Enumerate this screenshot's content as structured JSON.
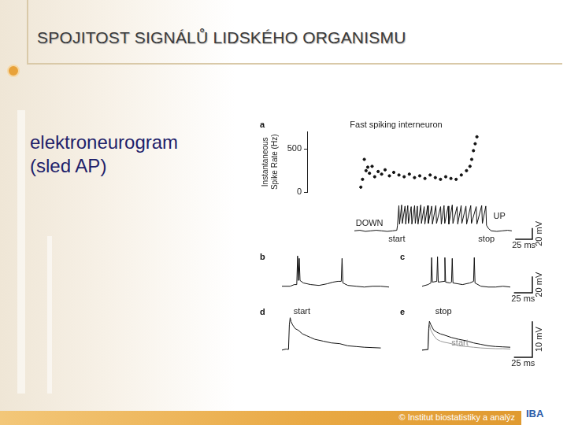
{
  "slide": {
    "title": "SPOJITOST SIGNÁLŮ LIDSKÉHO ORGANISMU",
    "text": [
      "elektroneurogram",
      "(sled AP)"
    ],
    "footer": "© Institut biostatistiky a analýz",
    "logo": "IBA"
  },
  "chart_data": [
    {
      "panel": "a",
      "type": "scatter",
      "title": "Fast spiking interneuron",
      "ylabel": [
        "Instantaneous",
        "Spike Rate (Hz)"
      ],
      "x": [
        62,
        64,
        66,
        68,
        70,
        72,
        75,
        78,
        82,
        86,
        90,
        95,
        100,
        106,
        112,
        118,
        124,
        130,
        136,
        142,
        148,
        154,
        160,
        166,
        172,
        178,
        184,
        188,
        190,
        192,
        194,
        196
      ],
      "values": [
        60,
        150,
        380,
        250,
        290,
        220,
        300,
        180,
        240,
        210,
        260,
        190,
        230,
        200,
        180,
        210,
        170,
        190,
        160,
        200,
        170,
        150,
        180,
        160,
        150,
        200,
        250,
        300,
        380,
        480,
        560,
        640
      ],
      "color": "#111111",
      "marker": "circle",
      "xlim": [
        0,
        260
      ],
      "ylim": [
        0,
        700
      ],
      "yticks": [
        0,
        500
      ],
      "tick_labels": "y",
      "grid": false
    },
    {
      "type": "line",
      "xlim": [
        0,
        260
      ],
      "ylim": [
        -85,
        -15
      ],
      "tick_labels": false,
      "grid": false,
      "series": [
        {
          "color": "#111111",
          "x": [
            0,
            8,
            16,
            24,
            32,
            40,
            48,
            56,
            62,
            63,
            65,
            66,
            69,
            70,
            74,
            75,
            78,
            79,
            83,
            84,
            88,
            89,
            92,
            93,
            97,
            98,
            102,
            103,
            107,
            108,
            113,
            114,
            119,
            120,
            126,
            127,
            131,
            132,
            137,
            138,
            143,
            144,
            150,
            151,
            156,
            157,
            163,
            164,
            170,
            171,
            178,
            179,
            186,
            187,
            192,
            193,
            196,
            200,
            208,
            216,
            224,
            230
          ],
          "values": [
            -70,
            -69,
            -71,
            -70,
            -69,
            -70,
            -71,
            -70,
            -69,
            -60,
            -25,
            -58,
            -24,
            -57,
            -26,
            -58,
            -25,
            -57,
            -27,
            -58,
            -25,
            -57,
            -26,
            -58,
            -24,
            -57,
            -27,
            -58,
            -25,
            -57,
            -26,
            -58,
            -25,
            -57,
            -27,
            -58,
            -25,
            -57,
            -26,
            -58,
            -24,
            -57,
            -27,
            -58,
            -25,
            -57,
            -26,
            -58,
            -25,
            -57,
            -27,
            -58,
            -25,
            -57,
            -26,
            -60,
            -66,
            -70,
            -71,
            -70,
            -69,
            -70
          ]
        }
      ],
      "annotations": [
        {
          "text": "DOWN",
          "x": 2,
          "y": -64
        },
        {
          "text": "UP",
          "x": 203,
          "y": -52
        },
        {
          "text": "start",
          "x": 62,
          "y": -77
        },
        {
          "text": "stop",
          "x": 193,
          "y": -77
        }
      ],
      "scale_bar": {
        "x": 25,
        "y": 20,
        "x_label": "25 ms",
        "y_label": "20 mV"
      }
    },
    {
      "panel": "b",
      "type": "line",
      "xlim": [
        0,
        130
      ],
      "ylim": [
        -70,
        -20
      ],
      "tick_labels": false,
      "grid": false,
      "series": [
        {
          "color": "#111111",
          "x": [
            0,
            10,
            15,
            18,
            19,
            20,
            21,
            22,
            26,
            35,
            45,
            55,
            62,
            68,
            72,
            73,
            74,
            80,
            90,
            100,
            110,
            120,
            130
          ],
          "values": [
            -62,
            -62,
            -60,
            -60,
            -25,
            -55,
            -28,
            -55,
            -58,
            -60,
            -61,
            -59,
            -57,
            -56,
            -56,
            -28,
            -58,
            -61,
            -62,
            -63,
            -62,
            -62,
            -63
          ]
        }
      ]
    },
    {
      "panel": "c",
      "type": "line",
      "xlim": [
        0,
        150
      ],
      "ylim": [
        -70,
        -20
      ],
      "tick_labels": false,
      "grid": false,
      "series": [
        {
          "color": "#111111",
          "x": [
            0,
            8,
            12,
            13,
            14,
            20,
            21,
            22,
            30,
            31,
            32,
            38,
            40,
            41,
            42,
            55,
            65,
            70,
            71,
            72,
            80,
            90,
            100,
            110,
            120
          ],
          "values": [
            -62,
            -60,
            -58,
            -27,
            -57,
            -56,
            -26,
            -57,
            -56,
            -27,
            -57,
            -58,
            -57,
            -28,
            -58,
            -60,
            -58,
            -56,
            -27,
            -58,
            -62,
            -63,
            -63,
            -62,
            -63
          ]
        }
      ],
      "scale_bar": {
        "x": 25,
        "y": 20,
        "x_label": "25 ms",
        "y_label": "20 mV"
      }
    },
    {
      "panel": "d",
      "type": "line",
      "xlim": [
        0,
        130
      ],
      "ylim": [
        -2,
        12
      ],
      "tick_labels": false,
      "grid": false,
      "series": [
        {
          "color": "#111111",
          "x": [
            0,
            5,
            8,
            9,
            10,
            11,
            13,
            16,
            20,
            25,
            30,
            35,
            40,
            50,
            60,
            70,
            80,
            90,
            100,
            110,
            120
          ],
          "values": [
            0,
            0.3,
            0.2,
            7,
            9,
            8,
            7,
            6,
            5.5,
            4.5,
            4,
            3.5,
            3,
            2.5,
            2,
            1.8,
            1.2,
            1,
            0.8,
            0.7,
            0.6
          ]
        }
      ],
      "annotations": [
        {
          "text": "start",
          "x": 14,
          "y": 9.5
        }
      ]
    },
    {
      "panel": "e",
      "type": "line",
      "xlim": [
        0,
        150
      ],
      "ylim": [
        -2,
        12
      ],
      "tick_labels": false,
      "grid": false,
      "series": [
        {
          "color": "#111111",
          "x": [
            0,
            8,
            9,
            10,
            12,
            16,
            20,
            25,
            30,
            40,
            50,
            60,
            70,
            80,
            90,
            100,
            110,
            120
          ],
          "values": [
            0,
            0.2,
            6,
            8,
            7,
            5.5,
            5,
            4.5,
            4.2,
            3.5,
            3,
            2.6,
            2,
            1.6,
            1.2,
            1,
            0.9,
            0.8
          ]
        },
        {
          "color": "#999999",
          "x": [
            0,
            8,
            9,
            10,
            12,
            16,
            20,
            25,
            30,
            40,
            50,
            60,
            70,
            80,
            90,
            100,
            110,
            120
          ],
          "values": [
            0,
            0.1,
            5,
            7,
            5.5,
            4,
            3,
            2.5,
            2.2,
            1.8,
            1.2,
            1,
            0.8,
            0.6,
            0.5,
            0.4,
            0.4,
            0.3
          ]
        }
      ],
      "annotations": [
        {
          "text": "stop",
          "x": 18,
          "y": 9.5,
          "color": "#111111"
        },
        {
          "text": "start",
          "x": 40,
          "y": 0.8,
          "color": "#888888"
        }
      ],
      "scale_bar": {
        "x": 25,
        "y": 10,
        "x_label": "25 ms",
        "y_label": "10 mV"
      }
    }
  ]
}
